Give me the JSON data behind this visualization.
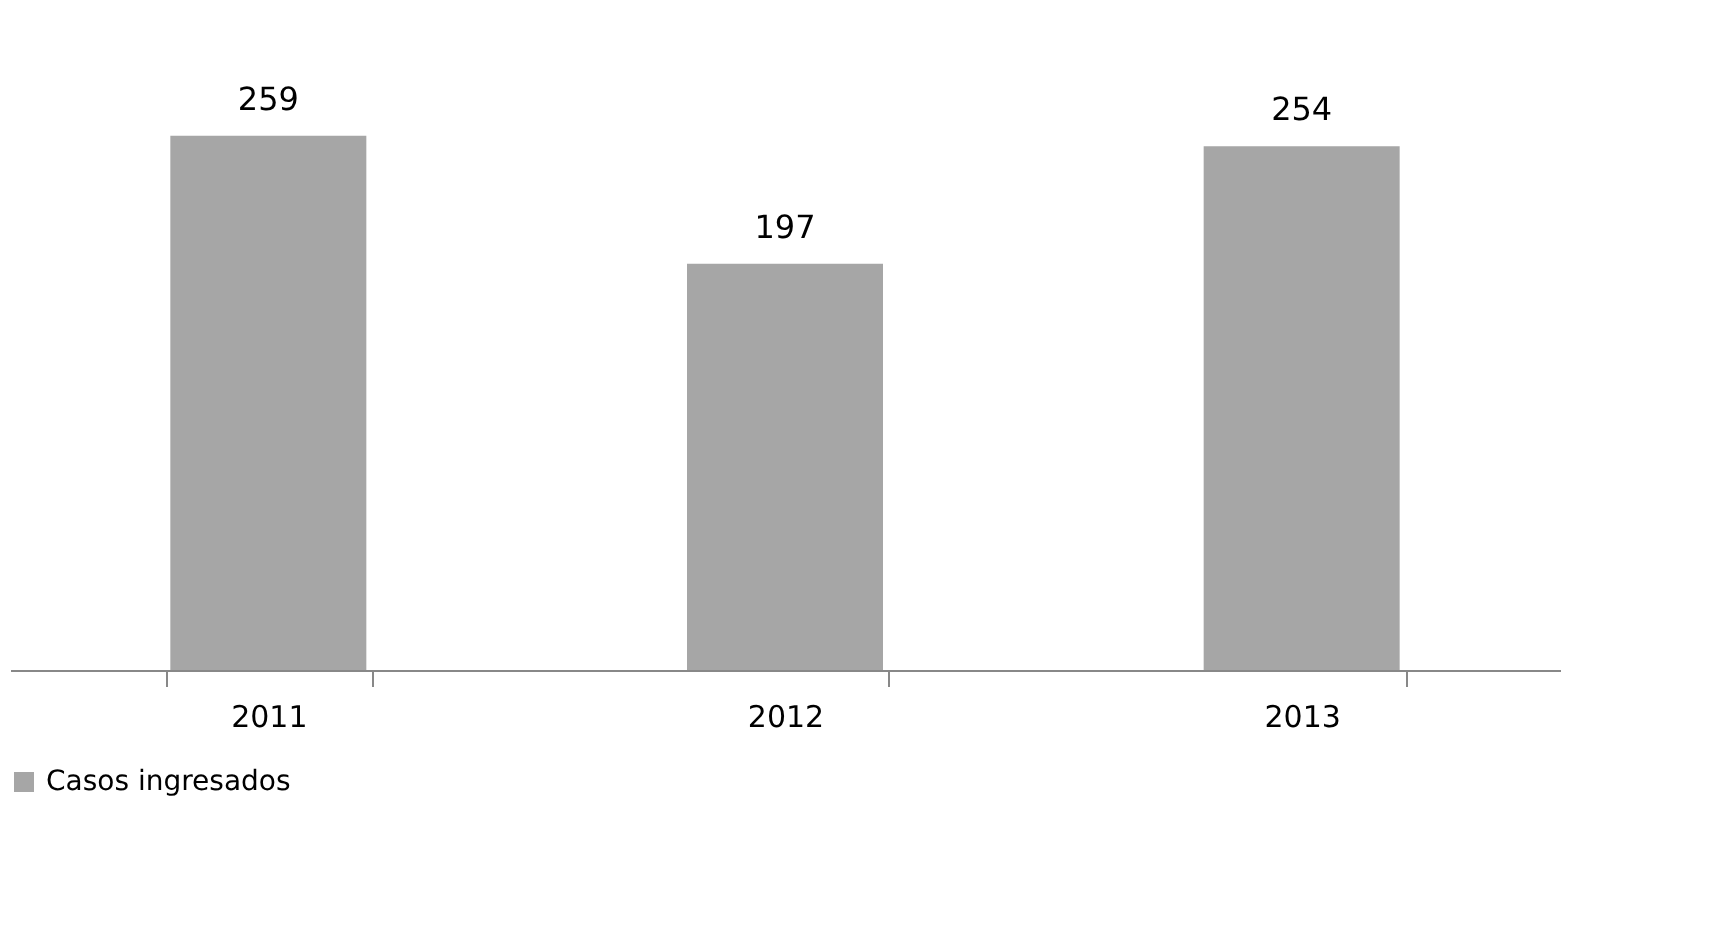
{
  "chart_data": {
    "type": "bar",
    "categories": [
      "2011",
      "2012",
      "2013"
    ],
    "series": [
      {
        "name": "Casos ingresados",
        "color": "#a6a6a6",
        "values": [
          259,
          197,
          254
        ]
      }
    ],
    "data_labels": true,
    "legend": "bottom",
    "grid": false
  }
}
